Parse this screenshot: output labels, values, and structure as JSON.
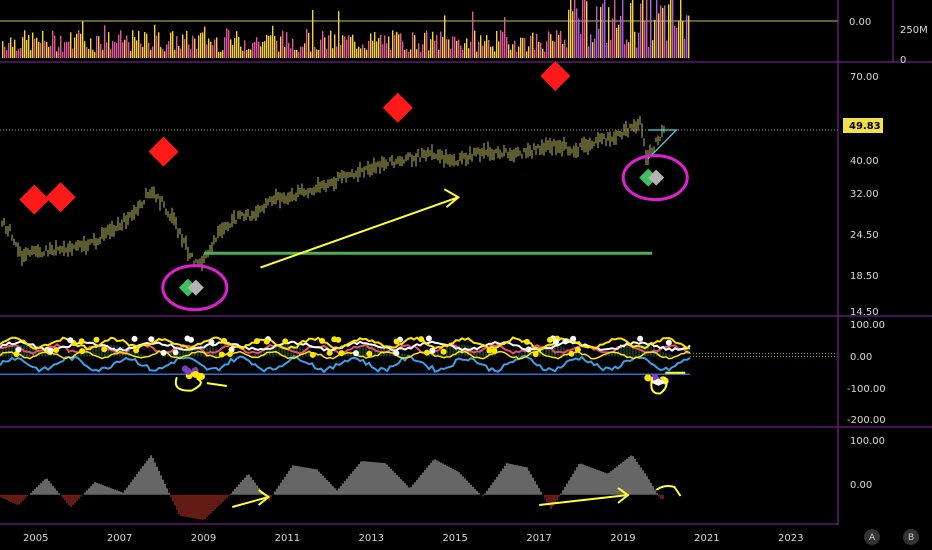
{
  "chart_data": {
    "type": "line",
    "instrument_last_price": "49.83",
    "x_axis": {
      "tick_labels": [
        "2005",
        "2007",
        "2009",
        "2011",
        "2013",
        "2015",
        "2017",
        "2019",
        "2021",
        "2023"
      ],
      "range": [
        2004.25,
        2025.0
      ]
    },
    "volume_panel": {
      "y_tick_labels": [
        "0.00",
        "250M",
        "0"
      ],
      "colors": [
        "#f4d03f",
        "#e0579a",
        "#b061d6"
      ]
    },
    "price_panel": {
      "y_tick_labels": [
        "70.00",
        "49.83",
        "40.00",
        "32.00",
        "24.50",
        "18.50",
        "14.50"
      ],
      "ylim": [
        14.5,
        72
      ],
      "scale": "log",
      "series": [
        {
          "x": [
            2004.25,
            2004.5,
            2004.8,
            2005.1,
            2005.5,
            2006.0,
            2006.5,
            2007.0,
            2007.5,
            2008.0,
            2008.3,
            2008.6,
            2008.9,
            2009.1,
            2009.3,
            2009.7,
            2010.0,
            2010.5,
            2011.0,
            2011.5,
            2012.0,
            2012.5,
            2013.0,
            2013.5,
            2014.0,
            2014.5,
            2015.0,
            2015.5,
            2016.0,
            2016.5,
            2017.0,
            2017.5,
            2018.0,
            2018.5,
            2019.0,
            2019.5,
            2020.0,
            2020.1,
            2020.25,
            2020.5,
            2020.7
          ],
          "y": [
            27,
            25,
            21,
            21.5,
            22,
            22,
            23,
            25,
            28,
            33,
            30,
            26,
            22,
            20,
            20.5,
            25,
            27,
            28,
            31,
            32,
            33,
            35,
            37,
            39,
            40,
            41.5,
            42,
            40,
            42.5,
            43,
            42,
            43.5,
            45,
            43.5,
            46,
            48,
            51,
            54,
            40,
            46,
            49.83
          ]
        }
      ],
      "signals_red_diamonds": [
        {
          "x": 2005.1,
          "y": 31
        },
        {
          "x": 2005.75,
          "y": 31.5
        },
        {
          "x": 2008.3,
          "y": 43
        },
        {
          "x": 2014.1,
          "y": 58
        },
        {
          "x": 2018.0,
          "y": 72
        }
      ],
      "signals_green_grey_diamonds": [
        {
          "x": 2009.0,
          "y": 17
        },
        {
          "x": 2020.4,
          "y": 36
        }
      ],
      "support_level": {
        "y": 21.5,
        "x_range": [
          2009.3,
          2020.4
        ],
        "color": "#4caf50"
      },
      "last_price_line": 49.83,
      "annotation_arrow": {
        "from": [
          2010.7,
          19.5
        ],
        "to": [
          2015.6,
          31.5
        ],
        "color": "#ffff33"
      },
      "annotation_circles_color": "#e020d0",
      "triangle_pattern_color": "#40e0e0"
    },
    "oscillator_panel": {
      "y_tick_labels": [
        "100.00",
        "0.00",
        "-100.00",
        "-200.00"
      ],
      "ylim": [
        -215,
        110
      ],
      "reference_level": -60
    },
    "histogram_panel": {
      "y_tick_labels": [
        "100.00",
        "0.00"
      ],
      "ylim": [
        -60,
        130
      ],
      "bar_colors": {
        "positive": "#c9c9c9",
        "negative": "#c0392b"
      },
      "series": [
        {
          "x": [
            2004.25,
            2004.7,
            2005.4,
            2006.0,
            2006.6,
            2007.3,
            2008.0,
            2008.7,
            2009.3,
            2009.9,
            2010.4,
            2010.9,
            2011.5,
            2012.1,
            2012.6,
            2013.2,
            2013.8,
            2014.4,
            2015.0,
            2015.6,
            2016.2,
            2016.8,
            2017.3,
            2017.9,
            2018.6,
            2019.3,
            2019.9,
            2020.3,
            2020.6
          ],
          "y": [
            -5,
            -25,
            40,
            -30,
            30,
            5,
            95,
            -50,
            -60,
            -5,
            50,
            -15,
            70,
            60,
            10,
            80,
            75,
            15,
            85,
            55,
            -5,
            75,
            65,
            -35,
            75,
            50,
            95,
            40,
            -10
          ]
        }
      ]
    },
    "corner_buttons": [
      "A",
      "B"
    ],
    "colors": {
      "background": "#000000",
      "panel_border": "#8e24aa",
      "price_candles": "#b8b85a",
      "signal_red": "#ff1a1a",
      "signal_green": "#3fbf5f",
      "signal_grey": "#b3b3b3",
      "price_tag": "#f1e04a",
      "annotation_yellow": "#ffff33",
      "osc_white": "#ffffff",
      "osc_yellow": "#ffe600",
      "osc_pink": "#e94b7a",
      "osc_blue": "#3aa0e8",
      "osc_green": "#3fbf5f",
      "osc_purple": "#7a3fc0"
    }
  }
}
